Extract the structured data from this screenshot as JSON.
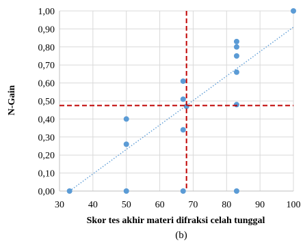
{
  "chart_data": {
    "type": "scatter",
    "xlabel": "Skor tes akhir materi  difraksi celah tunggal",
    "ylabel": "N-Gain",
    "caption": "(b)",
    "xlim": [
      30,
      100
    ],
    "ylim": [
      0,
      1
    ],
    "x_ticks": [
      "30",
      "40",
      "50",
      "60",
      "70",
      "80",
      "90",
      "100"
    ],
    "y_ticks": [
      "0,00",
      "0,10",
      "0,20",
      "0,30",
      "0,40",
      "0,50",
      "0,60",
      "0,70",
      "0,80",
      "0,90",
      "1,00"
    ],
    "grid": true,
    "points": [
      {
        "x": 33,
        "y": 0.0
      },
      {
        "x": 50,
        "y": 0.0
      },
      {
        "x": 50,
        "y": 0.26
      },
      {
        "x": 50,
        "y": 0.4
      },
      {
        "x": 67,
        "y": 0.0
      },
      {
        "x": 67,
        "y": 0.34
      },
      {
        "x": 67,
        "y": 0.51
      },
      {
        "x": 67,
        "y": 0.61
      },
      {
        "x": 68,
        "y": 0.47
      },
      {
        "x": 83,
        "y": 0.0
      },
      {
        "x": 83,
        "y": 0.48
      },
      {
        "x": 83,
        "y": 0.66
      },
      {
        "x": 83,
        "y": 0.75
      },
      {
        "x": 83,
        "y": 0.8
      },
      {
        "x": 83,
        "y": 0.83
      },
      {
        "x": 100,
        "y": 1.0
      }
    ],
    "trendline": {
      "x": [
        33,
        100
      ],
      "y": [
        0.0,
        0.91
      ]
    },
    "reference_lines": {
      "vertical_x": 68,
      "horizontal_y": 0.475
    },
    "colors": {
      "points": "#5b9bd5",
      "trendline": "#5b9bd5",
      "reference": "#c00000",
      "grid": "#d9d9d9",
      "axis": "#bfbfbf"
    }
  }
}
